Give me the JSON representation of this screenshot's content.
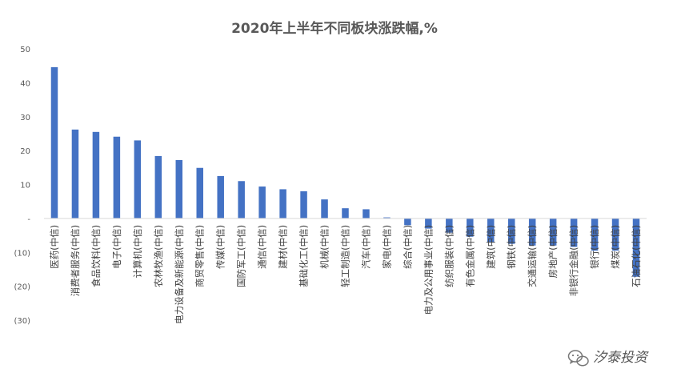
{
  "chart_data": {
    "type": "bar",
    "title": "2020年上半年不同板块涨跌幅,%",
    "xlabel": "",
    "ylabel": "",
    "ylim": [
      -30,
      50
    ],
    "yticks": [
      50,
      40,
      30,
      20,
      10,
      0,
      -10,
      -20,
      -30
    ],
    "ytick_labels": [
      "50",
      "40",
      "30",
      "20",
      "10",
      "-",
      "(10)",
      "(20)",
      "(30)"
    ],
    "grid": false,
    "bar_color": "#4472C4",
    "categories": [
      "医药(中信)",
      "消费者服务(中信)",
      "食品饮料(中信)",
      "电子(中信)",
      "计算机(中信)",
      "农林牧渔(中信)",
      "电力设备及新能源(中信)",
      "商贸零售(中信)",
      "传媒(中信)",
      "国防军工(中信)",
      "通信(中信)",
      "建材(中信)",
      "基础化工(中信)",
      "机械(中信)",
      "轻工制造(中信)",
      "汽车(中信)",
      "家电(中信)",
      "综合(中信)",
      "电力及公用事业(中信)",
      "纺织服装(中信)",
      "有色金属(中信)",
      "建筑(中信)",
      "钢铁(中信)",
      "交通运输(中信)",
      "房地产(中信)",
      "非银行金融(中信)",
      "银行(中信)",
      "煤炭(中信)",
      "石油石化(中信)"
    ],
    "values": [
      44.6,
      26.2,
      25.5,
      24.1,
      23.0,
      18.4,
      17.2,
      14.9,
      12.5,
      11.0,
      9.4,
      8.6,
      8.0,
      5.6,
      3.0,
      2.7,
      0.3,
      -2.0,
      -3.0,
      -4.2,
      -5.4,
      -7.0,
      -7.5,
      -8.0,
      -8.0,
      -8.4,
      -9.5,
      -9.5,
      -17.2
    ]
  },
  "watermark": {
    "icon": "wechat-icon",
    "text": "汐泰投资"
  }
}
